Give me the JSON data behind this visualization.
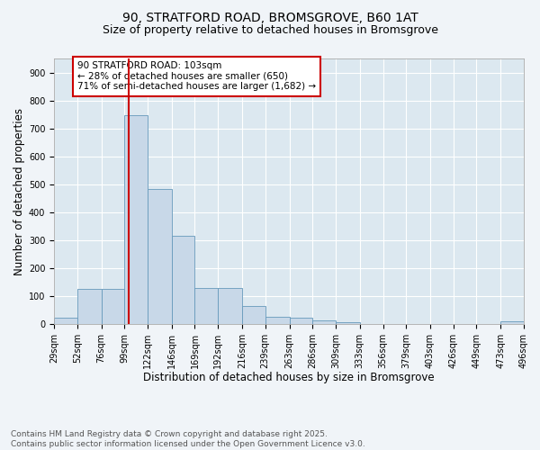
{
  "title_line1": "90, STRATFORD ROAD, BROMSGROVE, B60 1AT",
  "title_line2": "Size of property relative to detached houses in Bromsgrove",
  "xlabel": "Distribution of detached houses by size in Bromsgrove",
  "ylabel": "Number of detached properties",
  "bar_color": "#c8d8e8",
  "bar_edge_color": "#6699bb",
  "bins": [
    29,
    52,
    76,
    99,
    122,
    146,
    169,
    192,
    216,
    239,
    263,
    286,
    309,
    333,
    356,
    379,
    403,
    426,
    449,
    473,
    496
  ],
  "counts": [
    22,
    125,
    125,
    748,
    483,
    315,
    130,
    130,
    65,
    25,
    22,
    12,
    8,
    0,
    0,
    0,
    0,
    0,
    0,
    10
  ],
  "tick_labels": [
    "29sqm",
    "52sqm",
    "76sqm",
    "99sqm",
    "122sqm",
    "146sqm",
    "169sqm",
    "192sqm",
    "216sqm",
    "239sqm",
    "263sqm",
    "286sqm",
    "309sqm",
    "333sqm",
    "356sqm",
    "379sqm",
    "403sqm",
    "426sqm",
    "449sqm",
    "473sqm",
    "496sqm"
  ],
  "vline_x": 103,
  "vline_color": "#cc0000",
  "annotation_text": "90 STRATFORD ROAD: 103sqm\n← 28% of detached houses are smaller (650)\n71% of semi-detached houses are larger (1,682) →",
  "annotation_box_color": "#cc0000",
  "ylim": [
    0,
    950
  ],
  "yticks": [
    0,
    100,
    200,
    300,
    400,
    500,
    600,
    700,
    800,
    900
  ],
  "bg_color": "#dce8f0",
  "fig_color": "#f0f4f8",
  "grid_color": "#ffffff",
  "footer_text": "Contains HM Land Registry data © Crown copyright and database right 2025.\nContains public sector information licensed under the Open Government Licence v3.0.",
  "title_fontsize": 10,
  "subtitle_fontsize": 9,
  "axis_label_fontsize": 8.5,
  "tick_fontsize": 7,
  "annotation_fontsize": 7.5,
  "footer_fontsize": 6.5
}
